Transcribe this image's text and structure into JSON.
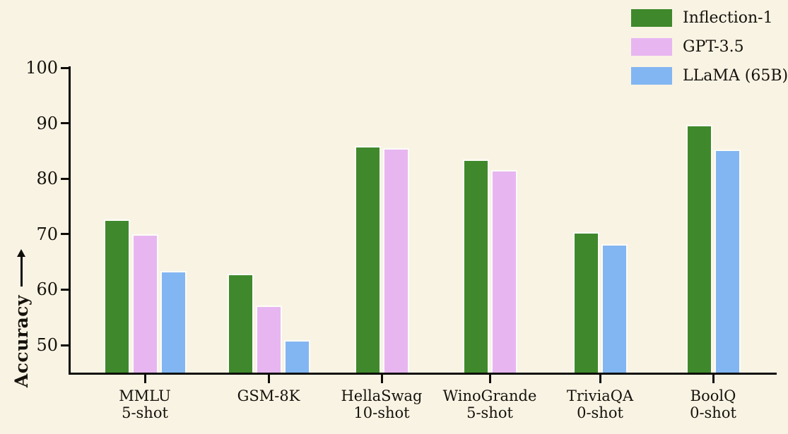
{
  "background_color": "#f9f3e4",
  "colors": {
    "axis": "#0f0d08",
    "text": "#15120b",
    "bar_outline": "#fdfcf6",
    "inflection_green": "#3f892c",
    "gpt_pink": "#e7b6f1",
    "llama_blue": "#82b6f2"
  },
  "chart_data": {
    "type": "bar",
    "title": "",
    "xlabel": "",
    "ylabel": "Accuracy",
    "ylim": [
      44.8,
      100
    ],
    "yticks": [
      50,
      60,
      70,
      80,
      90,
      100
    ],
    "grid": false,
    "legend_position": "top-right",
    "categories": [
      {
        "label": "MMLU",
        "sub": "5-shot"
      },
      {
        "label": "GSM-8K",
        "sub": ""
      },
      {
        "label": "HellaSwag",
        "sub": "10-shot"
      },
      {
        "label": "WinoGrande",
        "sub": "5-shot"
      },
      {
        "label": "TriviaQA",
        "sub": "0-shot"
      },
      {
        "label": "BoolQ",
        "sub": "0-shot"
      }
    ],
    "series": [
      {
        "name": "Inflection-1",
        "color": "#3f892c",
        "values": [
          72.7,
          62.9,
          85.9,
          83.4,
          70.4,
          89.7
        ]
      },
      {
        "name": "GPT-3.5",
        "color": "#e7b6f1",
        "values": [
          70.0,
          57.1,
          85.5,
          81.6,
          null,
          null
        ]
      },
      {
        "name": "LLaMA (65B)",
        "color": "#82b6f2",
        "values": [
          63.4,
          50.9,
          null,
          null,
          68.2,
          85.3
        ]
      }
    ]
  }
}
